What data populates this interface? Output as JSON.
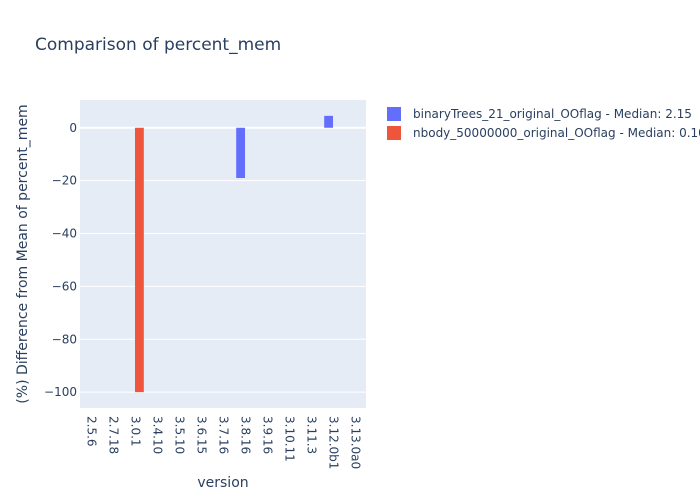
{
  "chart_data": {
    "type": "bar",
    "title": "Comparison of percent_mem",
    "xlabel": "version",
    "ylabel": "(%) Difference from Mean of percent_mem",
    "categories": [
      "2.5.6",
      "2.7.18",
      "3.0.1",
      "3.4.10",
      "3.5.10",
      "3.6.15",
      "3.7.16",
      "3.8.16",
      "3.9.16",
      "3.10.11",
      "3.11.3",
      "3.12.0b1",
      "3.13.0a0"
    ],
    "ylim": [
      -106,
      10.5
    ],
    "yticks": [
      0,
      -20,
      -40,
      -60,
      -80,
      -100
    ],
    "grid": true,
    "legend_position": "top-right",
    "series": [
      {
        "name": "binaryTrees_21_original_OOflag - Median: 2.15",
        "color": "#636efa",
        "values": [
          null,
          null,
          null,
          null,
          null,
          null,
          null,
          -19,
          null,
          null,
          null,
          4.5,
          null
        ]
      },
      {
        "name": "nbody_50000000_original_OOflag - Median: 0.10",
        "color": "#ef553b",
        "values": [
          null,
          null,
          -100,
          null,
          null,
          null,
          null,
          null,
          null,
          null,
          null,
          null,
          null
        ]
      }
    ]
  }
}
